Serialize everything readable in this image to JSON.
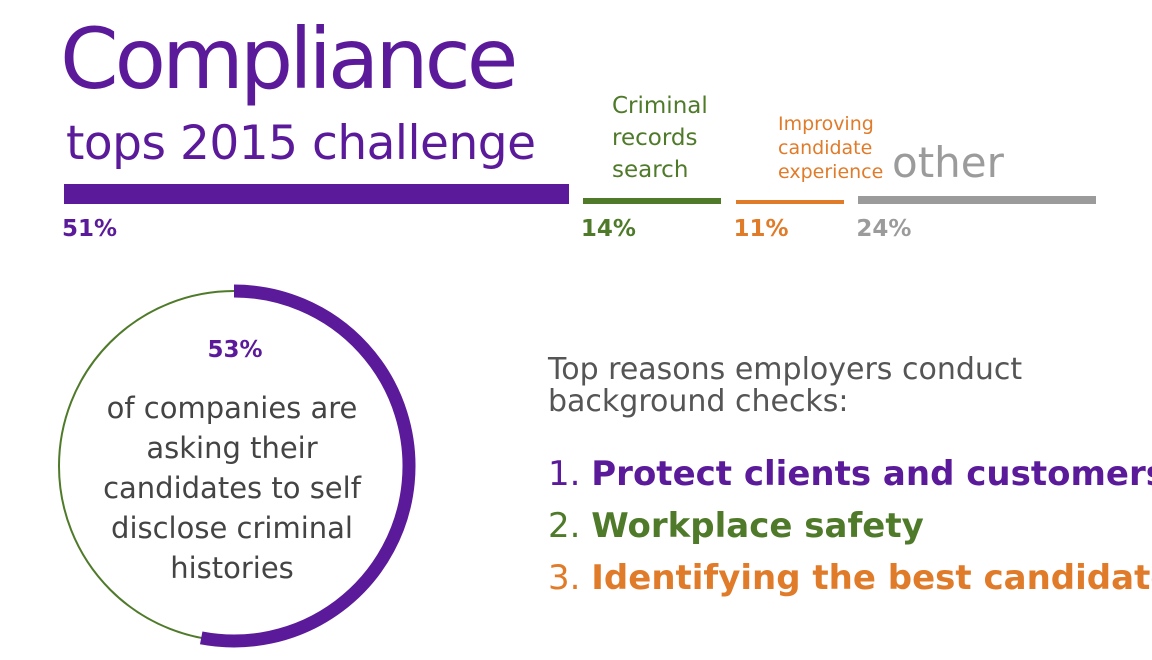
{
  "header": {
    "title_main": "Compliance",
    "title_sub": "tops 2015 challenge"
  },
  "colors": {
    "purple": "#5b1a9a",
    "green": "#4f7a2a",
    "orange": "#e07b2a",
    "gray": "#9b9b9b",
    "text": "#444444"
  },
  "chart_data": [
    {
      "type": "bar",
      "orientation": "horizontal-segmented",
      "categories": [
        "",
        "Criminal records search",
        "Improving candidate experience",
        "other"
      ],
      "values": [
        51,
        14,
        11,
        24
      ],
      "value_labels": [
        "51%",
        "14%",
        "11%",
        "24%"
      ],
      "unit": "%"
    },
    {
      "type": "pie",
      "style": "ring",
      "value": 53,
      "value_label": "53%",
      "description": "of companies are asking their candidates to self disclose criminal histories"
    }
  ],
  "reasons": {
    "title_line1": "Top reasons employers conduct",
    "title_line2": "background checks:",
    "items": [
      {
        "num": "1.",
        "text": "Protect clients and customers"
      },
      {
        "num": "2.",
        "text": "Workplace safety"
      },
      {
        "num": "3.",
        "text": "Identifying the best candidate"
      }
    ]
  }
}
